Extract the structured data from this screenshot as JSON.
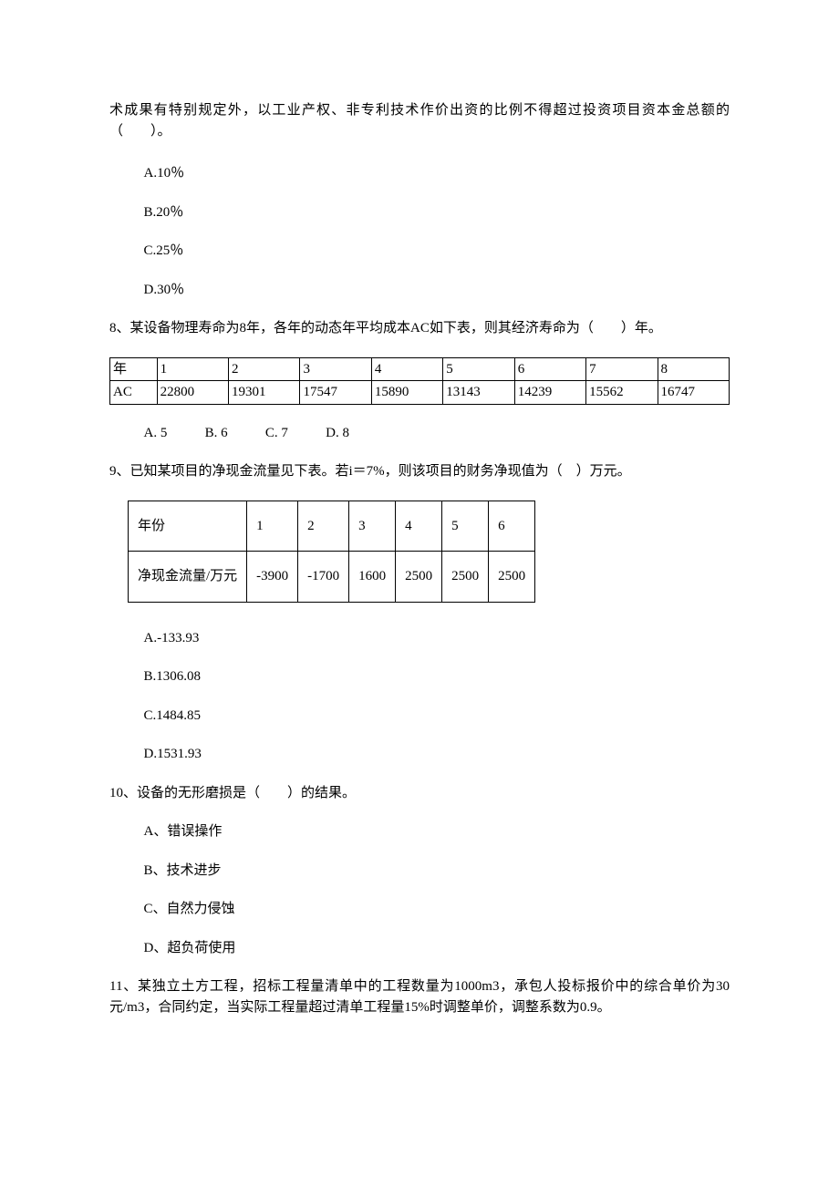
{
  "q7": {
    "cont": "术成果有特别规定外，以工业产权、非专利技术作价出资的比例不得超过投资项目资本金总额的（　　）。",
    "A": "A.10％",
    "B": "B.20％",
    "C": "C.25％",
    "D": "D.30％"
  },
  "q8": {
    "stem": "8、某设备物理寿命为8年，各年的动态年平均成本AC如下表，则其经济寿命为（　　）年。",
    "table": {
      "header": [
        "年",
        "1",
        "2",
        "3",
        "4",
        "5",
        "6",
        "7",
        "8"
      ],
      "row": [
        "AC",
        "22800",
        "19301",
        "17547",
        "15890",
        "13143",
        "14239",
        "15562",
        "16747"
      ],
      "col_widths_pct": [
        7.6,
        11.55,
        11.55,
        11.55,
        11.55,
        11.55,
        11.55,
        11.55,
        11.55
      ]
    },
    "A": "A. 5",
    "B": "B. 6",
    "C": "C. 7",
    "D": "D. 8"
  },
  "q9": {
    "stem": "9、已知某项目的净现金流量见下表。若i＝7%，则该项目的财务净现值为（　）万元。",
    "table": {
      "header": [
        "年份",
        "1",
        "2",
        "3",
        "4",
        "5",
        "6"
      ],
      "row": [
        "净现金流量/万元",
        "-3900",
        "-1700",
        "1600",
        "2500",
        "2500",
        "2500"
      ]
    },
    "A": "A.-133.93",
    "B": "B.1306.08",
    "C": "C.1484.85",
    "D": "D.1531.93"
  },
  "q10": {
    "stem": "10、设备的无形磨损是（　　）的结果。",
    "A": "A、错误操作",
    "B": "B、技术进步",
    "C": "C、自然力侵蚀",
    "D": "D、超负荷使用"
  },
  "q11": {
    "stem": "11、某独立土方工程，招标工程量清单中的工程数量为1000m3，承包人投标报价中的综合单价为30元/m3，合同约定，当实际工程量超过清单工程量15%时调整单价，调整系数为0.9。"
  }
}
